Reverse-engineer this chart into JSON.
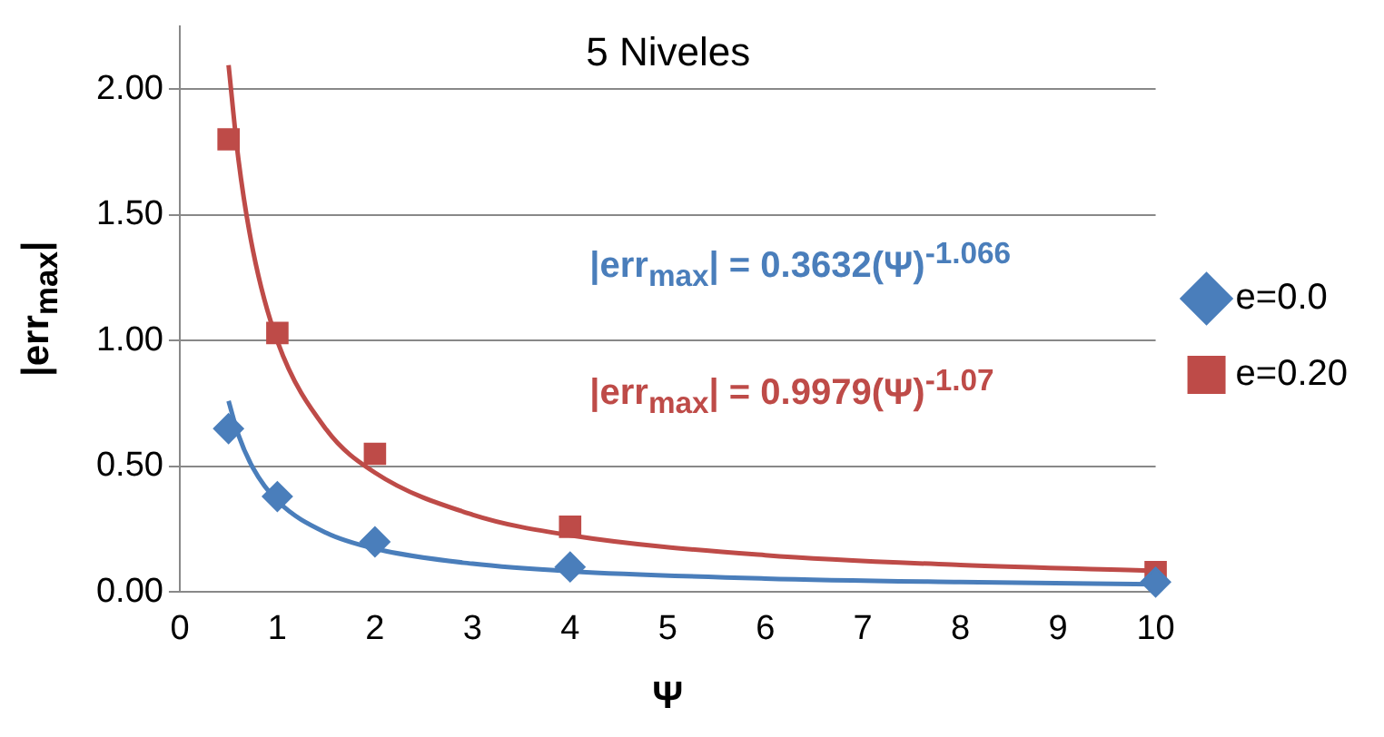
{
  "chart_data": {
    "type": "scatter",
    "title": "5 Niveles",
    "xlabel": "Ψ",
    "ylabel": "|err$_{max}$|",
    "xlim": [
      0,
      10
    ],
    "xticks": [
      0,
      1,
      2,
      3,
      4,
      5,
      6,
      7,
      8,
      9,
      10
    ],
    "ylim": [
      0,
      2.25
    ],
    "yticks": [
      {
        "value": 0,
        "label": "0.00"
      },
      {
        "value": 0.5,
        "label": "0.50"
      },
      {
        "value": 1,
        "label": "1.00"
      },
      {
        "value": 1.5,
        "label": "1.50"
      },
      {
        "value": 2,
        "label": "2.00"
      }
    ],
    "grid": "y",
    "legend": "right",
    "annotations": [
      "|err$_{max}$| = 0.3632(Ψ)$^{-1.066}$",
      "|err$_{max}$| = 0.9979(Ψ)$^{-1.07}$"
    ],
    "series": [
      {
        "type": "line",
        "marker": "none",
        "color": "#4a7ebb",
        "x": [
          0.5,
          0.6,
          0.75,
          1,
          1.5,
          2,
          3,
          4,
          6,
          8,
          10
        ],
        "values": [
          0.76,
          0.626,
          0.494,
          0.363,
          0.236,
          0.173,
          0.113,
          0.083,
          0.054,
          0.04,
          0.031
        ]
      },
      {
        "type": "line",
        "marker": "none",
        "color": "#be4b48",
        "x": [
          0.5,
          0.6,
          0.75,
          1,
          1.5,
          2,
          3,
          4,
          6,
          8,
          10
        ],
        "values": [
          2.095,
          1.724,
          1.358,
          0.998,
          0.647,
          0.475,
          0.308,
          0.226,
          0.147,
          0.108,
          0.085
        ]
      },
      {
        "name": "e=0.0",
        "marker": "diamond",
        "color": "#4a7ebb",
        "x": [
          0.5,
          1,
          2,
          4,
          10
        ],
        "values": [
          0.65,
          0.38,
          0.2,
          0.1,
          0.04
        ]
      },
      {
        "name": "e=0.20",
        "marker": "square",
        "color": "#be4b48",
        "x": [
          0.5,
          1,
          2,
          4,
          10
        ],
        "values": [
          1.8,
          1.03,
          0.55,
          0.26,
          0.08
        ]
      }
    ]
  }
}
